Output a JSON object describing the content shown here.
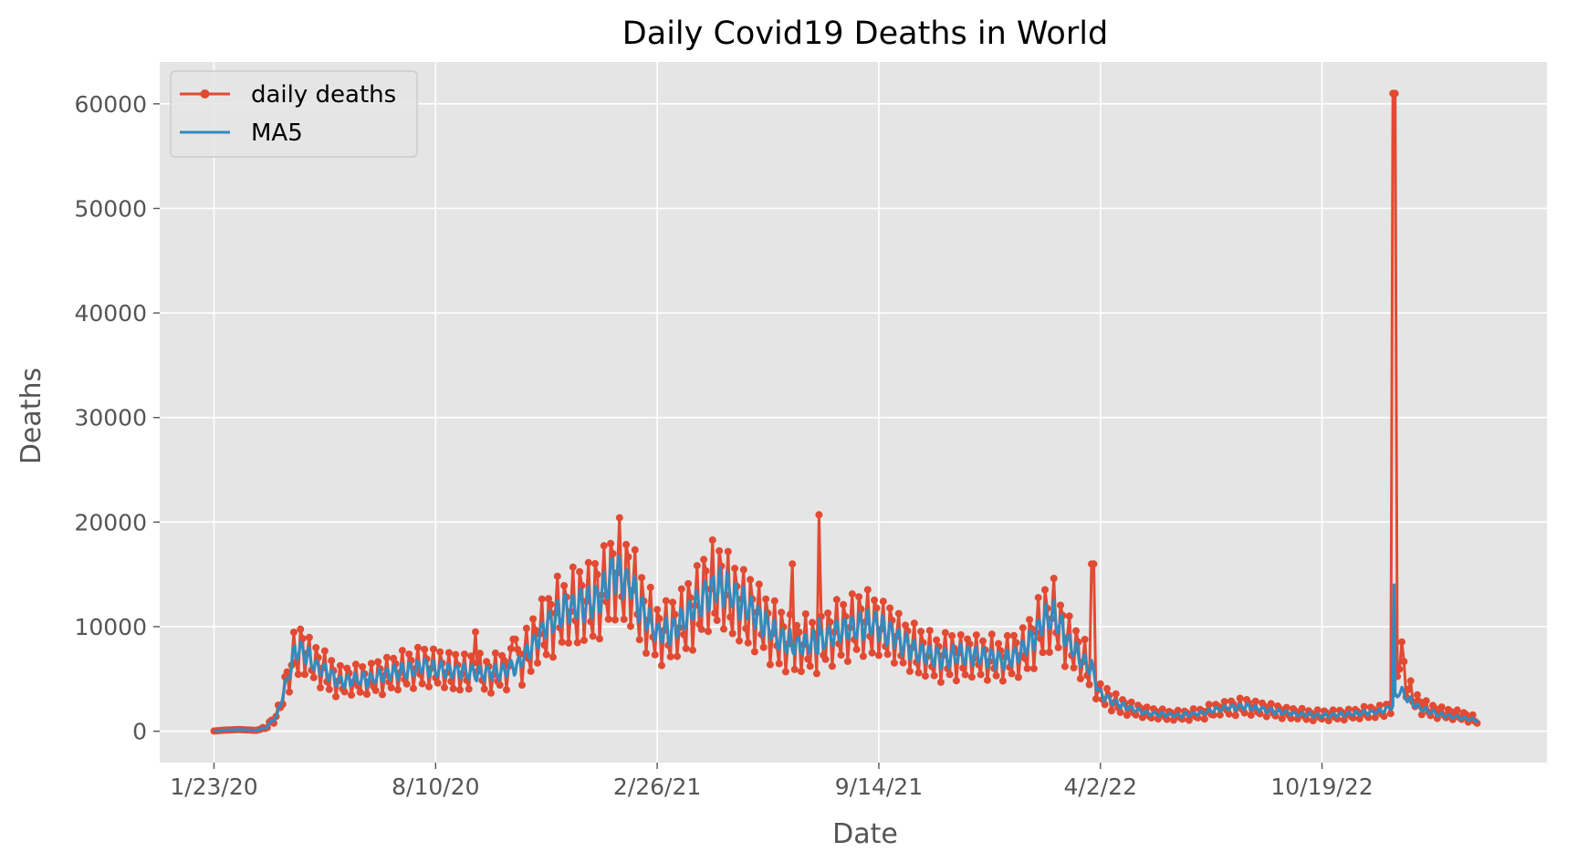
{
  "chart_data": {
    "type": "line",
    "title": "Daily Covid19 Deaths in World",
    "xlabel": "Date",
    "ylabel": "Deaths",
    "x_tick_labels": [
      "1/23/20",
      "8/10/20",
      "2/26/21",
      "9/14/21",
      "4/2/22",
      "10/19/22"
    ],
    "x_ticks": [
      "2020-01-23",
      "2020-08-10",
      "2021-02-26",
      "2021-09-14",
      "2022-04-02",
      "2022-10-19"
    ],
    "x_range": [
      "2019-12-05",
      "2023-05-10"
    ],
    "ylim": [
      -3000,
      64000
    ],
    "y_ticks": [
      0,
      10000,
      20000,
      30000,
      40000,
      50000,
      60000
    ],
    "grid": true,
    "legend_position": "upper-left",
    "colors": {
      "daily_deaths": "#E24A33",
      "ma5": "#348ABD",
      "plot_background": "#E5E5E5",
      "grid": "#FFFFFF"
    },
    "series": [
      {
        "name": "daily deaths",
        "style": "line-with-markers",
        "x": [
          "2020-01-23",
          "2020-02-01",
          "2020-02-15",
          "2020-03-01",
          "2020-03-10",
          "2020-03-20",
          "2020-03-28",
          "2020-04-05",
          "2020-04-12",
          "2020-04-18",
          "2020-04-25",
          "2020-05-05",
          "2020-05-15",
          "2020-05-25",
          "2020-06-01",
          "2020-06-10",
          "2020-06-20",
          "2020-07-01",
          "2020-07-15",
          "2020-08-01",
          "2020-08-10",
          "2020-08-25",
          "2020-09-10",
          "2020-09-25",
          "2020-10-10",
          "2020-10-25",
          "2020-11-10",
          "2020-11-25",
          "2020-12-10",
          "2020-12-25",
          "2021-01-05",
          "2021-01-15",
          "2021-01-22",
          "2021-02-01",
          "2021-02-15",
          "2021-02-26",
          "2021-03-10",
          "2021-03-25",
          "2021-04-10",
          "2021-04-20",
          "2021-04-30",
          "2021-05-15",
          "2021-06-01",
          "2021-06-15",
          "2021-07-01",
          "2021-07-10",
          "2021-07-25",
          "2021-08-10",
          "2021-08-25",
          "2021-09-14",
          "2021-10-01",
          "2021-10-20",
          "2021-11-10",
          "2021-12-01",
          "2021-12-20",
          "2022-01-05",
          "2022-01-20",
          "2022-02-01",
          "2022-02-10",
          "2022-02-20",
          "2022-03-01",
          "2022-03-15",
          "2022-03-25",
          "2022-04-02",
          "2022-04-20",
          "2022-05-15",
          "2022-06-10",
          "2022-07-01",
          "2022-07-20",
          "2022-08-10",
          "2022-09-01",
          "2022-09-20",
          "2022-10-19",
          "2022-11-10",
          "2022-12-01",
          "2022-12-15",
          "2022-12-22",
          "2022-12-28",
          "2023-01-05",
          "2023-01-15",
          "2023-02-01",
          "2023-02-20",
          "2023-03-05",
          "2023-03-09"
        ],
        "values": [
          17,
          100,
          160,
          80,
          350,
          1500,
          4500,
          7500,
          7800,
          7000,
          6200,
          5500,
          4800,
          4800,
          5000,
          4900,
          5200,
          5600,
          5800,
          6200,
          6000,
          5700,
          5600,
          5500,
          5800,
          6500,
          9000,
          11000,
          11800,
          12000,
          13000,
          14500,
          15500,
          14000,
          11000,
          9500,
          9500,
          11000,
          13000,
          13800,
          13500,
          12000,
          10500,
          9000,
          8200,
          8300,
          8600,
          9500,
          10200,
          10000,
          8800,
          7500,
          7000,
          7300,
          7000,
          6800,
          7500,
          9000,
          10500,
          11000,
          9000,
          7000,
          6000,
          3500,
          2500,
          1700,
          1500,
          1700,
          2200,
          2400,
          2000,
          1700,
          1500,
          1600,
          1800,
          2000,
          2500,
          8000,
          4000,
          2500,
          1800,
          1500,
          1200,
          1000
        ],
        "spikes": [
          {
            "x": "2020-09-15",
            "value": 9500
          },
          {
            "x": "2020-10-20",
            "value": 8800
          },
          {
            "x": "2021-06-28",
            "value": 16000
          },
          {
            "x": "2021-07-22",
            "value": 20700
          },
          {
            "x": "2022-03-26",
            "value": 16000
          },
          {
            "x": "2022-12-23",
            "value": 61000
          }
        ]
      },
      {
        "name": "MA5",
        "style": "line",
        "x": [
          "2020-01-23",
          "2020-02-01",
          "2020-02-15",
          "2020-03-01",
          "2020-03-10",
          "2020-03-20",
          "2020-03-28",
          "2020-04-05",
          "2020-04-12",
          "2020-04-18",
          "2020-04-25",
          "2020-05-05",
          "2020-05-15",
          "2020-05-25",
          "2020-06-01",
          "2020-06-10",
          "2020-06-20",
          "2020-07-01",
          "2020-07-15",
          "2020-08-01",
          "2020-08-10",
          "2020-08-25",
          "2020-09-10",
          "2020-09-25",
          "2020-10-10",
          "2020-10-25",
          "2020-11-10",
          "2020-11-25",
          "2020-12-10",
          "2020-12-25",
          "2021-01-05",
          "2021-01-15",
          "2021-01-22",
          "2021-02-01",
          "2021-02-15",
          "2021-02-26",
          "2021-03-10",
          "2021-03-25",
          "2021-04-10",
          "2021-04-20",
          "2021-04-30",
          "2021-05-15",
          "2021-06-01",
          "2021-06-15",
          "2021-07-01",
          "2021-07-10",
          "2021-07-25",
          "2021-08-10",
          "2021-08-25",
          "2021-09-14",
          "2021-10-01",
          "2021-10-20",
          "2021-11-10",
          "2021-12-01",
          "2021-12-20",
          "2022-01-05",
          "2022-01-20",
          "2022-02-01",
          "2022-02-10",
          "2022-02-20",
          "2022-03-01",
          "2022-03-15",
          "2022-03-25",
          "2022-04-02",
          "2022-04-20",
          "2022-05-15",
          "2022-06-10",
          "2022-07-01",
          "2022-07-20",
          "2022-08-10",
          "2022-09-01",
          "2022-09-20",
          "2022-10-19",
          "2022-11-10",
          "2022-12-01",
          "2022-12-15",
          "2022-12-22",
          "2022-12-28",
          "2023-01-05",
          "2023-01-15",
          "2023-02-01",
          "2023-02-20",
          "2023-03-05",
          "2023-03-09"
        ],
        "values": [
          17,
          100,
          160,
          80,
          350,
          1500,
          4500,
          7500,
          7800,
          7000,
          6200,
          5500,
          4800,
          4800,
          5000,
          4900,
          5200,
          5600,
          5800,
          6200,
          6000,
          5700,
          5600,
          5500,
          5800,
          6500,
          9000,
          11000,
          11800,
          12000,
          13000,
          14500,
          15500,
          14000,
          11000,
          9500,
          9500,
          11000,
          13000,
          13800,
          13500,
          12000,
          10500,
          9000,
          8200,
          8300,
          8600,
          9500,
          10200,
          10000,
          8800,
          7500,
          7000,
          7300,
          7000,
          6800,
          7500,
          9000,
          10500,
          11000,
          9000,
          7000,
          6000,
          3500,
          2500,
          1700,
          1500,
          1700,
          2200,
          2400,
          2000,
          1700,
          1500,
          1600,
          1800,
          2000,
          2500,
          4000,
          3000,
          2200,
          1600,
          1300,
          1100,
          1000
        ],
        "spikes": [
          {
            "x": "2021-07-22",
            "value": 10800
          },
          {
            "x": "2022-12-23",
            "value": 14000
          }
        ]
      }
    ]
  }
}
